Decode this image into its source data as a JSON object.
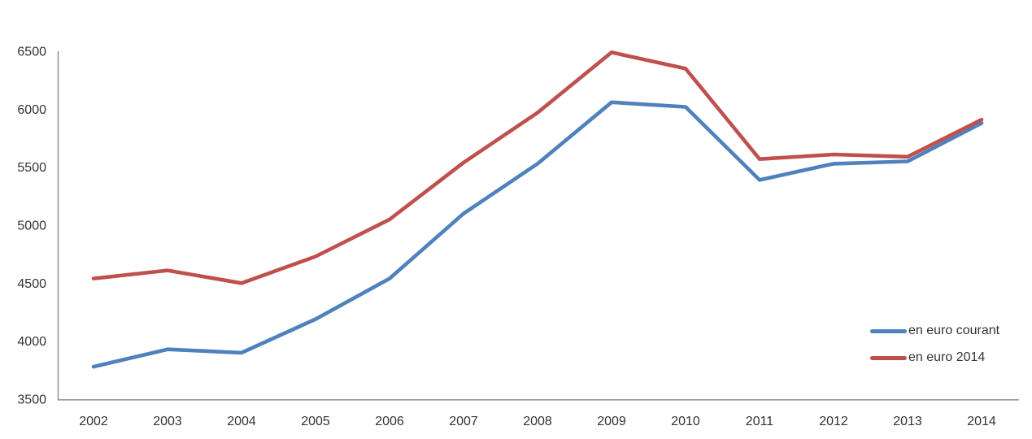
{
  "chart_data": {
    "type": "line",
    "title": "",
    "xlabel": "",
    "ylabel": "",
    "x": [
      2002,
      2003,
      2004,
      2005,
      2006,
      2007,
      2008,
      2009,
      2010,
      2011,
      2012,
      2013,
      2014
    ],
    "series": [
      {
        "name": "en euro courant",
        "color": "#4F81BD",
        "values": [
          3780,
          3930,
          3900,
          4190,
          4540,
          5100,
          5530,
          6060,
          6020,
          5390,
          5530,
          5550,
          5880
        ]
      },
      {
        "name": "en euro 2014",
        "color": "#C0504D",
        "values": [
          4540,
          4610,
          4500,
          4730,
          5050,
          5540,
          5970,
          6490,
          6350,
          5570,
          5610,
          5590,
          5910
        ]
      }
    ],
    "ylim": [
      3500,
      6500
    ],
    "yticks": [
      3500,
      4000,
      4500,
      5000,
      5500,
      6000,
      6500
    ],
    "grid": false,
    "legend_position": "right",
    "axis_color": "#969696",
    "text_color": "#333333",
    "background": "#FFFFFF"
  }
}
